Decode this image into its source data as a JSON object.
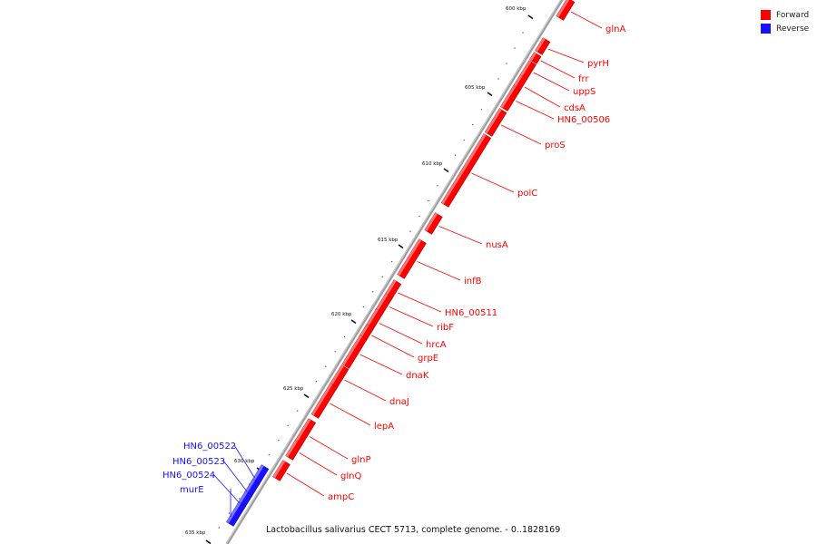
{
  "colors": {
    "forward": "#ff0000",
    "reverse": "#1a10ff",
    "backbone": "#9c9c9c",
    "tick": "#111111"
  },
  "legend": [
    {
      "label": "Forward",
      "color": "#ff0000"
    },
    {
      "label": "Reverse",
      "color": "#1a10ff"
    }
  ],
  "caption": "Lactobacillus salivarius CECT 5713, complete genome. - 0..1828169",
  "kbp_ticks": [
    "600 kbp",
    "605 kbp",
    "610 kbp",
    "615 kbp",
    "620 kbp",
    "625 kbp",
    "630 kbp",
    "635 kbp"
  ],
  "genes": [
    {
      "name": "glnA",
      "strand": "forward"
    },
    {
      "name": "pyrH",
      "strand": "forward"
    },
    {
      "name": "frr",
      "strand": "forward"
    },
    {
      "name": "uppS",
      "strand": "forward"
    },
    {
      "name": "cdsA",
      "strand": "forward"
    },
    {
      "name": "HN6_00506",
      "strand": "forward"
    },
    {
      "name": "proS",
      "strand": "forward"
    },
    {
      "name": "polC",
      "strand": "forward"
    },
    {
      "name": "nusA",
      "strand": "forward"
    },
    {
      "name": "infB",
      "strand": "forward"
    },
    {
      "name": "HN6_00511",
      "strand": "forward"
    },
    {
      "name": "ribF",
      "strand": "forward"
    },
    {
      "name": "hrcA",
      "strand": "forward"
    },
    {
      "name": "grpE",
      "strand": "forward"
    },
    {
      "name": "dnaK",
      "strand": "forward"
    },
    {
      "name": "dnaJ",
      "strand": "forward"
    },
    {
      "name": "lepA",
      "strand": "forward"
    },
    {
      "name": "glnP",
      "strand": "forward"
    },
    {
      "name": "glnQ",
      "strand": "forward"
    },
    {
      "name": "ampC",
      "strand": "forward"
    },
    {
      "name": "HN6_00522",
      "strand": "reverse"
    },
    {
      "name": "HN6_00523",
      "strand": "reverse"
    },
    {
      "name": "HN6_00524",
      "strand": "reverse"
    },
    {
      "name": "murE",
      "strand": "reverse"
    }
  ]
}
